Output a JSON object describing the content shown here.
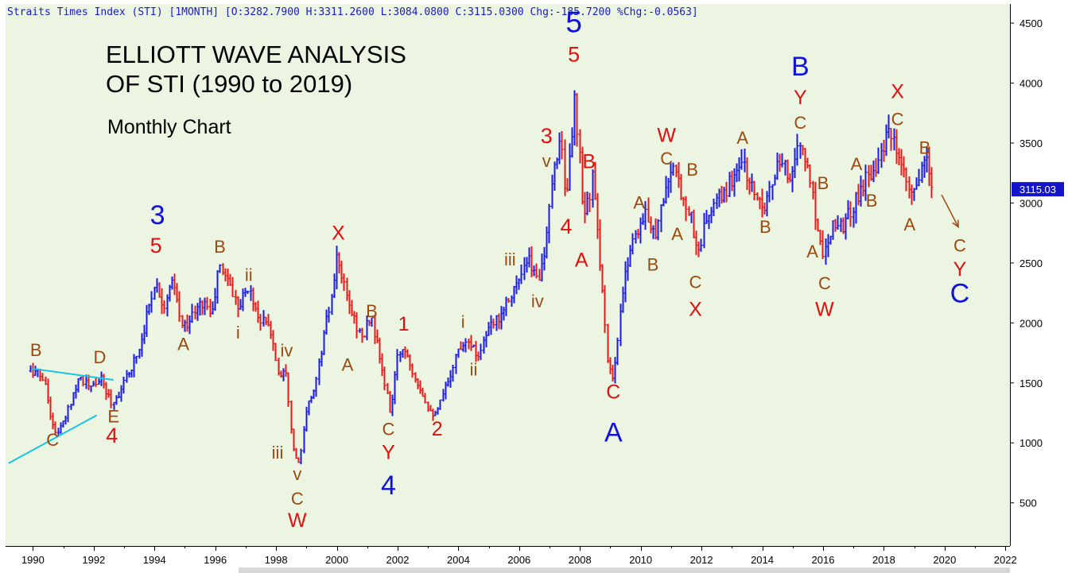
{
  "header": {
    "text": "Straits Times Index (STI) [1MONTH] [O:3282.7900 H:3311.2600 L:3084.0800 C:3115.0300 Chg:-185.7200 %Chg:-0.0563]"
  },
  "annotations": {
    "title_line1": "ELLIOTT WAVE ANALYSIS",
    "title_line2": "OF STI (1990 to 2019)",
    "subtitle": "Monthly Chart"
  },
  "colors": {
    "background": "#ebf5e1",
    "up_bar": "#1a1ae6",
    "down_bar": "#e61a1a",
    "trendline": "#19c3e6",
    "wave_blue": "#1010e0",
    "wave_red": "#e01010",
    "wave_brown": "#9a4a10",
    "last_price_bg": "#1414c8"
  },
  "chart_data": {
    "type": "bar",
    "style": "ohlc-monthly",
    "symbol": "STI",
    "last_price": "3115.03",
    "ylim": [
      140,
      4660
    ],
    "y_ticks": [
      500,
      1000,
      1500,
      2000,
      2500,
      3000,
      3500,
      4000,
      4500
    ],
    "xlim": [
      1989.1,
      2022.15
    ],
    "x_ticks": [
      1990,
      1992,
      1994,
      1996,
      1998,
      2000,
      2002,
      2004,
      2006,
      2008,
      2010,
      2012,
      2014,
      2016,
      2018,
      2020,
      2022
    ],
    "grid": false,
    "trendlines": [
      {
        "from": [
          1989.2,
          830
        ],
        "to": [
          1992.1,
          1230
        ]
      },
      {
        "from": [
          1989.95,
          1620
        ],
        "to": [
          1992.65,
          1525
        ]
      }
    ],
    "projection_arrow": {
      "from": [
        2019.9,
        3070
      ],
      "to": [
        2020.45,
        2800
      ]
    },
    "series": [
      {
        "values": [
          [
            1990.0,
            1600
          ],
          [
            1990.35,
            1540
          ],
          [
            1990.7,
            1070
          ],
          [
            1991.0,
            1160
          ],
          [
            1991.5,
            1560
          ],
          [
            1991.9,
            1450
          ],
          [
            1992.2,
            1540
          ],
          [
            1992.6,
            1320
          ],
          [
            1993.0,
            1500
          ],
          [
            1993.5,
            1800
          ],
          [
            1994.0,
            2350
          ],
          [
            1994.3,
            2150
          ],
          [
            1994.6,
            2340
          ],
          [
            1994.9,
            1960
          ],
          [
            1995.2,
            2050
          ],
          [
            1995.6,
            2180
          ],
          [
            1995.9,
            2080
          ],
          [
            1996.1,
            2470
          ],
          [
            1996.4,
            2380
          ],
          [
            1996.7,
            2150
          ],
          [
            1997.1,
            2290
          ],
          [
            1997.4,
            2060
          ],
          [
            1997.8,
            1950
          ],
          [
            1998.1,
            1550
          ],
          [
            1998.3,
            1660
          ],
          [
            1998.55,
            950
          ],
          [
            1998.75,
            810
          ],
          [
            1999.0,
            1280
          ],
          [
            1999.3,
            1500
          ],
          [
            1999.6,
            1950
          ],
          [
            1999.9,
            2310
          ],
          [
            2000.0,
            2560
          ],
          [
            2000.3,
            2210
          ],
          [
            2000.6,
            2010
          ],
          [
            2000.85,
            1850
          ],
          [
            2001.1,
            2080
          ],
          [
            2001.4,
            1710
          ],
          [
            2001.75,
            1250
          ],
          [
            2002.0,
            1730
          ],
          [
            2002.2,
            1810
          ],
          [
            2002.5,
            1600
          ],
          [
            2003.0,
            1300
          ],
          [
            2003.25,
            1220
          ],
          [
            2003.7,
            1560
          ],
          [
            2004.0,
            1790
          ],
          [
            2004.3,
            1890
          ],
          [
            2004.6,
            1720
          ],
          [
            2004.9,
            1900
          ],
          [
            2005.3,
            2050
          ],
          [
            2005.7,
            2250
          ],
          [
            2006.0,
            2350
          ],
          [
            2006.3,
            2520
          ],
          [
            2006.6,
            2360
          ],
          [
            2006.9,
            2700
          ],
          [
            2007.1,
            3200
          ],
          [
            2007.35,
            3600
          ],
          [
            2007.55,
            3000
          ],
          [
            2007.8,
            3850
          ],
          [
            2007.95,
            3480
          ],
          [
            2008.1,
            2850
          ],
          [
            2008.4,
            3200
          ],
          [
            2008.7,
            2400
          ],
          [
            2008.9,
            1650
          ],
          [
            2009.1,
            1510
          ],
          [
            2009.35,
            2150
          ],
          [
            2009.6,
            2600
          ],
          [
            2009.9,
            2800
          ],
          [
            2010.2,
            2900
          ],
          [
            2010.5,
            2750
          ],
          [
            2010.8,
            3150
          ],
          [
            2011.1,
            3250
          ],
          [
            2011.4,
            3050
          ],
          [
            2011.65,
            2880
          ],
          [
            2011.85,
            2570
          ],
          [
            2012.2,
            2900
          ],
          [
            2012.5,
            3000
          ],
          [
            2012.9,
            3150
          ],
          [
            2013.3,
            3370
          ],
          [
            2013.5,
            3200
          ],
          [
            2013.8,
            3050
          ],
          [
            2014.1,
            3010
          ],
          [
            2014.5,
            3300
          ],
          [
            2014.9,
            3250
          ],
          [
            2015.2,
            3480
          ],
          [
            2015.5,
            3300
          ],
          [
            2015.8,
            2800
          ],
          [
            2016.0,
            2570
          ],
          [
            2016.3,
            2850
          ],
          [
            2016.7,
            2820
          ],
          [
            2017.1,
            3050
          ],
          [
            2017.5,
            3250
          ],
          [
            2017.9,
            3400
          ],
          [
            2018.2,
            3600
          ],
          [
            2018.5,
            3300
          ],
          [
            2018.9,
            3050
          ],
          [
            2019.2,
            3230
          ],
          [
            2019.4,
            3350
          ],
          [
            2019.6,
            3115
          ]
        ]
      }
    ]
  },
  "wave_labels": [
    {
      "text": "B",
      "x": 1990.1,
      "y": 1725,
      "color": "brown",
      "size": 22
    },
    {
      "text": "C",
      "x": 1990.65,
      "y": 975,
      "color": "brown",
      "size": 22
    },
    {
      "text": "D",
      "x": 1992.2,
      "y": 1665,
      "color": "brown",
      "size": 22
    },
    {
      "text": "E",
      "x": 1992.65,
      "y": 1170,
      "color": "brown",
      "size": 22
    },
    {
      "text": "4",
      "x": 1992.6,
      "y": 1000,
      "color": "red",
      "size": 27
    },
    {
      "text": "3",
      "x": 1994.1,
      "y": 2825,
      "color": "blue",
      "size": 34
    },
    {
      "text": "5",
      "x": 1994.05,
      "y": 2585,
      "color": "red",
      "size": 27
    },
    {
      "text": "A",
      "x": 1994.95,
      "y": 1775,
      "color": "brown",
      "size": 22
    },
    {
      "text": "B",
      "x": 1996.15,
      "y": 2585,
      "color": "brown",
      "size": 22
    },
    {
      "text": "ii",
      "x": 1997.1,
      "y": 2350,
      "color": "brown",
      "size": 22
    },
    {
      "text": "i",
      "x": 1996.75,
      "y": 1870,
      "color": "brown",
      "size": 22
    },
    {
      "text": "iv",
      "x": 1998.35,
      "y": 1720,
      "color": "brown",
      "size": 22
    },
    {
      "text": "iii",
      "x": 1998.05,
      "y": 870,
      "color": "brown",
      "size": 22
    },
    {
      "text": "v",
      "x": 1998.7,
      "y": 690,
      "color": "brown",
      "size": 22
    },
    {
      "text": "C",
      "x": 1998.7,
      "y": 485,
      "color": "brown",
      "size": 22
    },
    {
      "text": "W",
      "x": 1998.7,
      "y": 300,
      "color": "red",
      "size": 25
    },
    {
      "text": "X",
      "x": 2000.05,
      "y": 2695,
      "color": "red",
      "size": 25
    },
    {
      "text": "A",
      "x": 2000.35,
      "y": 1600,
      "color": "brown",
      "size": 22
    },
    {
      "text": "B",
      "x": 2001.15,
      "y": 2050,
      "color": "brown",
      "size": 22
    },
    {
      "text": "1",
      "x": 2002.2,
      "y": 1935,
      "color": "red",
      "size": 25
    },
    {
      "text": "C",
      "x": 2001.7,
      "y": 1065,
      "color": "brown",
      "size": 22
    },
    {
      "text": "Y",
      "x": 2001.7,
      "y": 865,
      "color": "red",
      "size": 25
    },
    {
      "text": "4",
      "x": 2001.7,
      "y": 570,
      "color": "blue",
      "size": 34
    },
    {
      "text": "2",
      "x": 2003.3,
      "y": 1060,
      "color": "red",
      "size": 25
    },
    {
      "text": "i",
      "x": 2004.15,
      "y": 1960,
      "color": "brown",
      "size": 22
    },
    {
      "text": "ii",
      "x": 2004.5,
      "y": 1560,
      "color": "brown",
      "size": 22
    },
    {
      "text": "iii",
      "x": 2005.7,
      "y": 2480,
      "color": "brown",
      "size": 22
    },
    {
      "text": "iv",
      "x": 2006.6,
      "y": 2130,
      "color": "brown",
      "size": 22
    },
    {
      "text": "v",
      "x": 2006.9,
      "y": 3300,
      "color": "brown",
      "size": 22
    },
    {
      "text": "3",
      "x": 2006.9,
      "y": 3500,
      "color": "red",
      "size": 27
    },
    {
      "text": "4",
      "x": 2007.55,
      "y": 2745,
      "color": "red",
      "size": 27
    },
    {
      "text": "5",
      "x": 2007.8,
      "y": 4425,
      "color": "blue",
      "size": 37
    },
    {
      "text": "5",
      "x": 2007.8,
      "y": 4180,
      "color": "red",
      "size": 27
    },
    {
      "text": "B",
      "x": 2008.3,
      "y": 3290,
      "color": "red",
      "size": 25
    },
    {
      "text": "A",
      "x": 2008.05,
      "y": 2470,
      "color": "red",
      "size": 25
    },
    {
      "text": "C",
      "x": 2009.1,
      "y": 1370,
      "color": "red",
      "size": 25
    },
    {
      "text": "A",
      "x": 2009.1,
      "y": 1010,
      "color": "blue",
      "size": 34
    },
    {
      "text": "A",
      "x": 2009.95,
      "y": 2955,
      "color": "brown",
      "size": 22
    },
    {
      "text": "B",
      "x": 2010.4,
      "y": 2435,
      "color": "brown",
      "size": 22
    },
    {
      "text": "W",
      "x": 2010.85,
      "y": 3510,
      "color": "red",
      "size": 25
    },
    {
      "text": "C",
      "x": 2010.85,
      "y": 3320,
      "color": "brown",
      "size": 22
    },
    {
      "text": "B",
      "x": 2011.7,
      "y": 3230,
      "color": "brown",
      "size": 22
    },
    {
      "text": "A",
      "x": 2011.2,
      "y": 2690,
      "color": "brown",
      "size": 22
    },
    {
      "text": "C",
      "x": 2011.8,
      "y": 2290,
      "color": "brown",
      "size": 22
    },
    {
      "text": "X",
      "x": 2011.8,
      "y": 2060,
      "color": "red",
      "size": 25
    },
    {
      "text": "A",
      "x": 2013.35,
      "y": 3495,
      "color": "brown",
      "size": 22
    },
    {
      "text": "B",
      "x": 2014.1,
      "y": 2750,
      "color": "brown",
      "size": 22
    },
    {
      "text": "B",
      "x": 2015.25,
      "y": 4065,
      "color": "blue",
      "size": 34
    },
    {
      "text": "Y",
      "x": 2015.25,
      "y": 3825,
      "color": "red",
      "size": 25
    },
    {
      "text": "C",
      "x": 2015.25,
      "y": 3620,
      "color": "brown",
      "size": 22
    },
    {
      "text": "B",
      "x": 2016.0,
      "y": 3115,
      "color": "brown",
      "size": 22
    },
    {
      "text": "A",
      "x": 2015.65,
      "y": 2545,
      "color": "brown",
      "size": 22
    },
    {
      "text": "C",
      "x": 2016.05,
      "y": 2280,
      "color": "brown",
      "size": 22
    },
    {
      "text": "W",
      "x": 2016.05,
      "y": 2060,
      "color": "red",
      "size": 25
    },
    {
      "text": "A",
      "x": 2017.1,
      "y": 3275,
      "color": "brown",
      "size": 22
    },
    {
      "text": "B",
      "x": 2017.6,
      "y": 2970,
      "color": "brown",
      "size": 22
    },
    {
      "text": "X",
      "x": 2018.45,
      "y": 3875,
      "color": "red",
      "size": 25
    },
    {
      "text": "C",
      "x": 2018.45,
      "y": 3650,
      "color": "brown",
      "size": 22
    },
    {
      "text": "B",
      "x": 2019.35,
      "y": 3410,
      "color": "brown",
      "size": 22
    },
    {
      "text": "A",
      "x": 2018.85,
      "y": 2770,
      "color": "brown",
      "size": 22
    },
    {
      "text": "C",
      "x": 2020.5,
      "y": 2595,
      "color": "brown",
      "size": 22
    },
    {
      "text": "Y",
      "x": 2020.5,
      "y": 2395,
      "color": "red",
      "size": 25
    },
    {
      "text": "C",
      "x": 2020.5,
      "y": 2170,
      "color": "blue",
      "size": 34
    }
  ]
}
